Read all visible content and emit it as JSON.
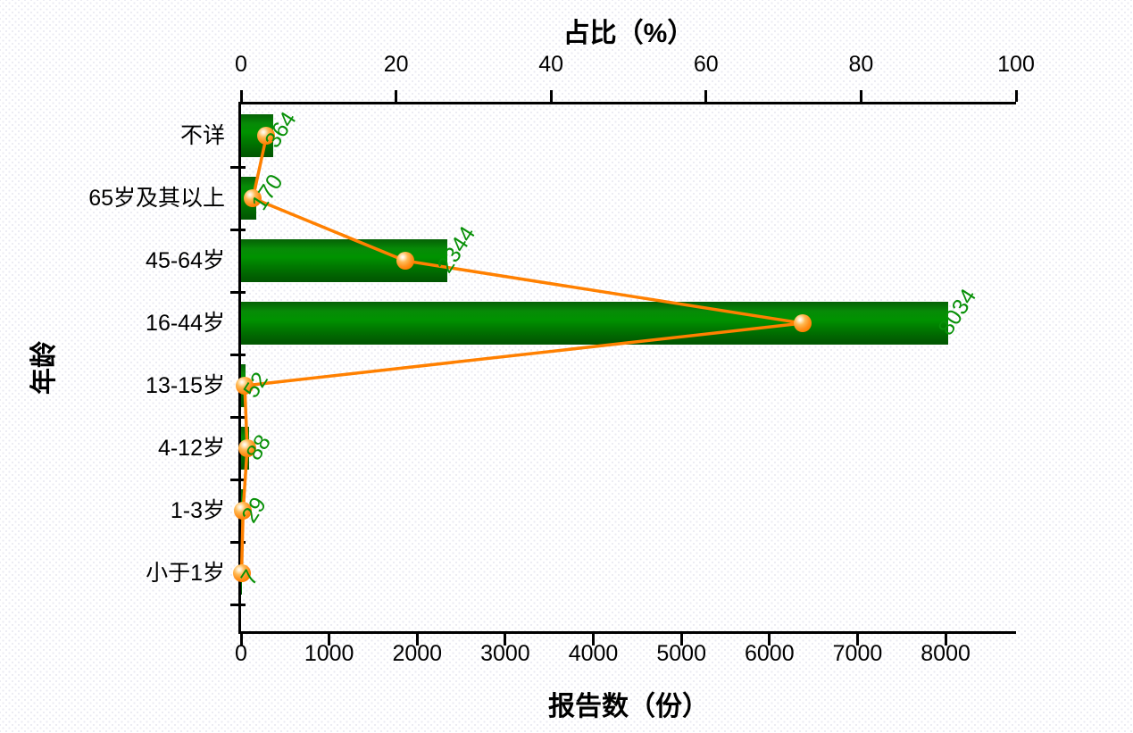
{
  "colors": {
    "bar_green": "#007c00",
    "line_orange": "#ff8000",
    "value_label_green": "#089008",
    "axis_black": "#000000"
  },
  "chart_data": {
    "type": "bar",
    "orientation": "horizontal",
    "title": "",
    "grid": false,
    "legend": "none",
    "categories_top_to_bottom": [
      "不详",
      "65岁及其以上",
      "45-64岁",
      "16-44岁",
      "13-15岁",
      "4-12岁",
      "1-3岁",
      "小于1岁"
    ],
    "series": [
      {
        "name": "报告数（份）",
        "type": "bar",
        "axis": "bottom",
        "values": [
          364,
          170,
          2344,
          8034,
          52,
          88,
          29,
          7
        ]
      },
      {
        "name": "占比（%）",
        "type": "line",
        "axis": "top",
        "values": [
          3.283,
          1.533,
          21.141,
          72.457,
          0.469,
          0.794,
          0.262,
          0.063
        ]
      }
    ],
    "data_labels": [
      "364",
      "170",
      "2344",
      "8034",
      "52",
      "88",
      "29",
      "7"
    ],
    "top_axis": {
      "title": "占比（%）",
      "ticks": [
        "0",
        "20",
        "40",
        "60",
        "80",
        "100"
      ],
      "tick_values": [
        0,
        20,
        40,
        60,
        80,
        100
      ],
      "range": [
        0,
        100
      ]
    },
    "bottom_axis": {
      "title": "报告数（份）",
      "ticks": [
        "0",
        "1000",
        "2000",
        "3000",
        "4000",
        "5000",
        "6000",
        "7000",
        "8000"
      ],
      "tick_values": [
        0,
        1000,
        2000,
        3000,
        4000,
        5000,
        6000,
        7000,
        8000
      ],
      "range": [
        0,
        8800
      ]
    },
    "left_axis": {
      "title": "年龄"
    }
  }
}
